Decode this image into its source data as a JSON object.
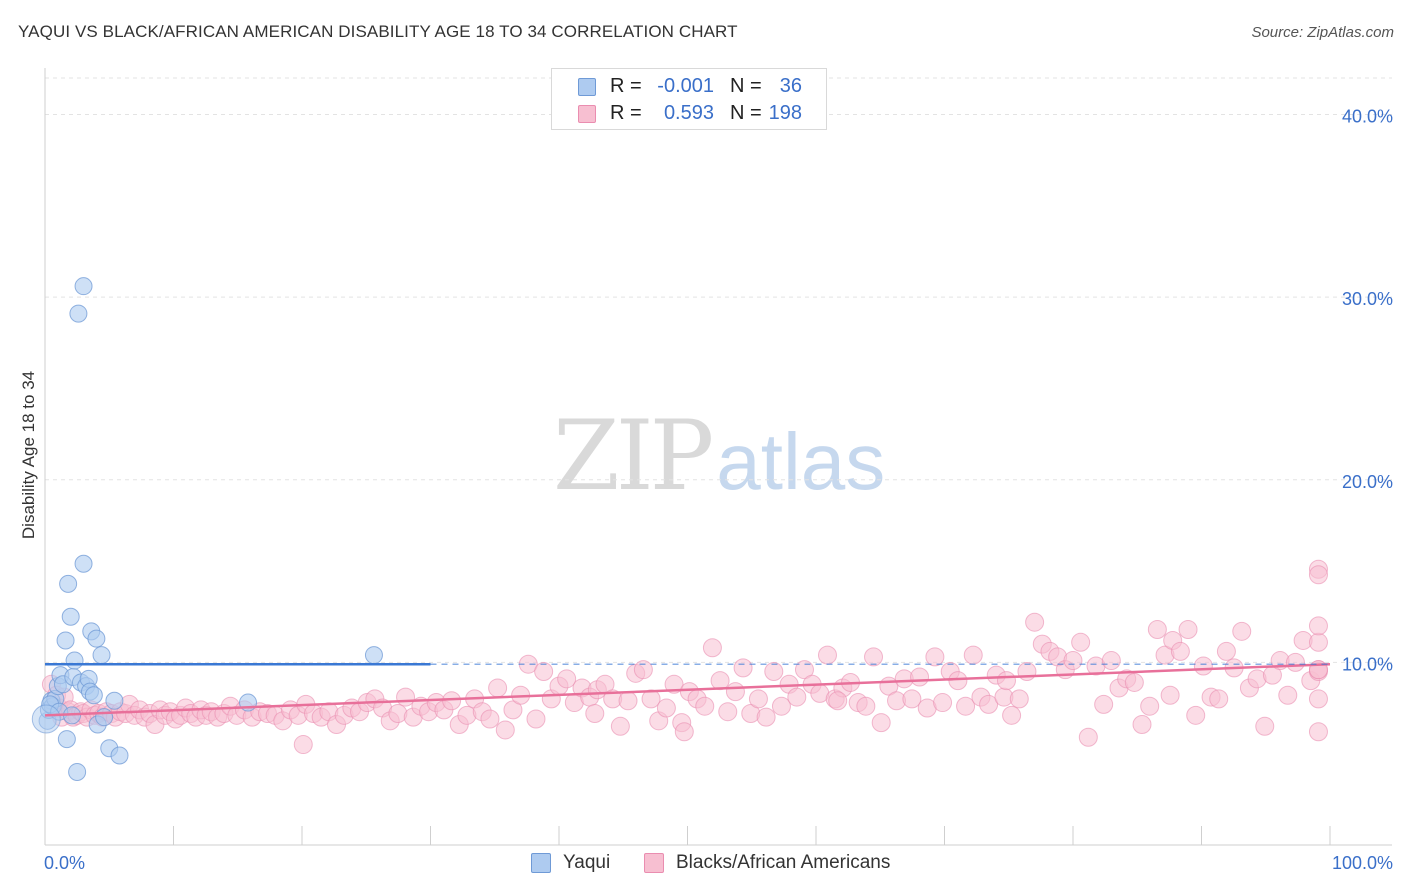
{
  "header": {
    "title": "YAQUI VS BLACK/AFRICAN AMERICAN DISABILITY AGE 18 TO 34 CORRELATION CHART",
    "source": "Source: ZipAtlas.com"
  },
  "watermark": {
    "zip": "ZIP",
    "atlas": "atlas"
  },
  "legend": {
    "rows": [
      {
        "r_label": "R =",
        "r_value": "-0.001",
        "n_label": "N =",
        "n_value": "36",
        "color": "#aecbf0",
        "border": "#6f9ad6"
      },
      {
        "r_label": "R =",
        "r_value": "0.593",
        "n_label": "N =",
        "n_value": "198",
        "color": "#f7bfd1",
        "border": "#ea8db0"
      }
    ]
  },
  "bottom_legend": [
    {
      "label": "Yaqui",
      "color": "#aecbf0",
      "border": "#6f9ad6"
    },
    {
      "label": "Blacks/African Americans",
      "color": "#f7bfd1",
      "border": "#ea8db0"
    }
  ],
  "chart_data": {
    "type": "scatter",
    "title": "YAQUI VS BLACK/AFRICAN AMERICAN DISABILITY AGE 18 TO 34 CORRELATION CHART",
    "xlabel": "",
    "ylabel": "Disability Age 18 to 34",
    "xlim": [
      0,
      100
    ],
    "ylim": [
      0,
      42
    ],
    "x_tick_labels": [
      "0.0%",
      "100.0%"
    ],
    "y_ticks": [
      10,
      20,
      30,
      40
    ],
    "y_tick_labels": [
      "10.0%",
      "20.0%",
      "30.0%",
      "40.0%"
    ],
    "grid": true,
    "colors": {
      "yaqui": "#6f9ad6",
      "yaqui_fill": "#aecbf0",
      "black": "#ea8db0",
      "black_fill": "#f7bfd1",
      "yaqui_line": "#3a78d4",
      "black_line": "#e8709a",
      "axis_text": "#3a6fc9"
    },
    "series": [
      {
        "name": "Yaqui",
        "trend": {
          "x": [
            0,
            30
          ],
          "y": [
            9.9,
            9.9
          ],
          "dashed_extension_to": 100
        },
        "points": [
          [
            0.2,
            6.8
          ],
          [
            0.3,
            7.4
          ],
          [
            0.5,
            7.9
          ],
          [
            0.6,
            7.6
          ],
          [
            0.8,
            8.0
          ],
          [
            1.0,
            8.7
          ],
          [
            1.2,
            9.3
          ],
          [
            1.4,
            8.8
          ],
          [
            1.6,
            11.2
          ],
          [
            1.7,
            5.8
          ],
          [
            1.8,
            14.3
          ],
          [
            2.0,
            12.5
          ],
          [
            2.2,
            9.2
          ],
          [
            2.3,
            10.1
          ],
          [
            2.5,
            4.0
          ],
          [
            2.6,
            29.1
          ],
          [
            2.8,
            8.9
          ],
          [
            3.0,
            30.6
          ],
          [
            3.0,
            15.4
          ],
          [
            3.2,
            8.7
          ],
          [
            3.4,
            9.1
          ],
          [
            3.5,
            8.4
          ],
          [
            3.6,
            11.7
          ],
          [
            3.8,
            8.2
          ],
          [
            4.0,
            11.3
          ],
          [
            4.1,
            6.6
          ],
          [
            4.4,
            10.4
          ],
          [
            5.0,
            5.3
          ],
          [
            5.4,
            7.9
          ],
          [
            5.8,
            4.9
          ],
          [
            0.4,
            7.7
          ],
          [
            1.1,
            7.3
          ],
          [
            2.1,
            7.1
          ],
          [
            15.8,
            7.8
          ],
          [
            25.6,
            10.4
          ],
          [
            4.6,
            7.0
          ]
        ]
      },
      {
        "name": "Blacks/African Americans",
        "trend": {
          "x": [
            0,
            100
          ],
          "y": [
            7.1,
            9.9
          ]
        },
        "points": [
          [
            0.5,
            8.8
          ],
          [
            0.7,
            7.6
          ],
          [
            0.9,
            8.2
          ],
          [
            1.1,
            7.5
          ],
          [
            1.3,
            7.0
          ],
          [
            1.5,
            8.1
          ],
          [
            1.8,
            7.3
          ],
          [
            2.0,
            7.4
          ],
          [
            2.2,
            7.0
          ],
          [
            2.5,
            7.1
          ],
          [
            2.8,
            7.3
          ],
          [
            3.0,
            7.2
          ],
          [
            3.3,
            7.0
          ],
          [
            3.6,
            7.4
          ],
          [
            3.9,
            7.1
          ],
          [
            4.2,
            7.2
          ],
          [
            4.5,
            7.0
          ],
          [
            4.8,
            7.3
          ],
          [
            5.2,
            7.2
          ],
          [
            5.5,
            7.0
          ],
          [
            5.9,
            7.3
          ],
          [
            6.3,
            7.2
          ],
          [
            6.6,
            7.7
          ],
          [
            7.0,
            7.1
          ],
          [
            7.4,
            7.4
          ],
          [
            7.8,
            7.0
          ],
          [
            8.2,
            7.2
          ],
          [
            8.6,
            6.6
          ],
          [
            9.0,
            7.4
          ],
          [
            9.4,
            7.1
          ],
          [
            9.8,
            7.3
          ],
          [
            10.2,
            6.9
          ],
          [
            10.6,
            7.1
          ],
          [
            11.0,
            7.5
          ],
          [
            11.4,
            7.2
          ],
          [
            11.8,
            7.0
          ],
          [
            12.2,
            7.4
          ],
          [
            12.6,
            7.1
          ],
          [
            13.0,
            7.3
          ],
          [
            13.5,
            7.0
          ],
          [
            14.0,
            7.2
          ],
          [
            14.5,
            7.6
          ],
          [
            15.0,
            7.1
          ],
          [
            15.6,
            7.4
          ],
          [
            16.2,
            7.0
          ],
          [
            16.8,
            7.3
          ],
          [
            17.4,
            7.2
          ],
          [
            18.0,
            7.1
          ],
          [
            18.6,
            6.8
          ],
          [
            19.2,
            7.4
          ],
          [
            19.8,
            7.1
          ],
          [
            20.4,
            7.7
          ],
          [
            21.0,
            7.2
          ],
          [
            21.6,
            7.0
          ],
          [
            22.2,
            7.3
          ],
          [
            22.8,
            6.6
          ],
          [
            23.4,
            7.1
          ],
          [
            24.0,
            7.5
          ],
          [
            24.6,
            7.3
          ],
          [
            25.2,
            7.8
          ],
          [
            25.8,
            8.0
          ],
          [
            26.4,
            7.5
          ],
          [
            27.0,
            6.8
          ],
          [
            27.6,
            7.2
          ],
          [
            28.2,
            8.1
          ],
          [
            28.8,
            7.0
          ],
          [
            29.4,
            7.6
          ],
          [
            30.0,
            7.3
          ],
          [
            30.6,
            7.8
          ],
          [
            31.2,
            7.4
          ],
          [
            31.8,
            7.9
          ],
          [
            32.4,
            6.6
          ],
          [
            33.0,
            7.1
          ],
          [
            33.6,
            8.0
          ],
          [
            34.2,
            7.3
          ],
          [
            34.8,
            6.9
          ],
          [
            35.4,
            8.6
          ],
          [
            36.0,
            6.3
          ],
          [
            36.6,
            7.4
          ],
          [
            37.2,
            8.2
          ],
          [
            37.8,
            9.9
          ],
          [
            38.4,
            6.9
          ],
          [
            39.0,
            9.5
          ],
          [
            39.6,
            8.0
          ],
          [
            40.2,
            8.7
          ],
          [
            40.8,
            9.1
          ],
          [
            41.4,
            7.8
          ],
          [
            42.0,
            8.6
          ],
          [
            42.6,
            8.1
          ],
          [
            43.2,
            8.5
          ],
          [
            43.8,
            8.8
          ],
          [
            44.4,
            8.0
          ],
          [
            45.0,
            6.5
          ],
          [
            45.6,
            7.9
          ],
          [
            46.2,
            9.4
          ],
          [
            46.8,
            9.6
          ],
          [
            47.4,
            8.0
          ],
          [
            48.0,
            6.8
          ],
          [
            48.6,
            7.5
          ],
          [
            49.2,
            8.8
          ],
          [
            49.8,
            6.7
          ],
          [
            50.4,
            8.4
          ],
          [
            51.0,
            8.0
          ],
          [
            51.6,
            7.6
          ],
          [
            52.2,
            10.8
          ],
          [
            52.8,
            9.0
          ],
          [
            53.4,
            7.3
          ],
          [
            54.0,
            8.4
          ],
          [
            54.6,
            9.7
          ],
          [
            55.2,
            7.2
          ],
          [
            55.8,
            8.0
          ],
          [
            56.4,
            7.0
          ],
          [
            57.0,
            9.5
          ],
          [
            57.6,
            7.6
          ],
          [
            58.2,
            8.8
          ],
          [
            58.8,
            8.1
          ],
          [
            59.4,
            9.6
          ],
          [
            60.0,
            8.8
          ],
          [
            60.6,
            8.3
          ],
          [
            61.2,
            10.4
          ],
          [
            61.8,
            8.0
          ],
          [
            62.4,
            8.6
          ],
          [
            63.0,
            8.9
          ],
          [
            63.6,
            7.8
          ],
          [
            64.2,
            7.6
          ],
          [
            64.8,
            10.3
          ],
          [
            65.4,
            6.7
          ],
          [
            66.0,
            8.7
          ],
          [
            66.6,
            7.9
          ],
          [
            67.2,
            9.1
          ],
          [
            67.8,
            8.0
          ],
          [
            68.4,
            9.2
          ],
          [
            69.0,
            7.5
          ],
          [
            69.6,
            10.3
          ],
          [
            70.2,
            7.8
          ],
          [
            70.8,
            9.5
          ],
          [
            71.4,
            9.0
          ],
          [
            72.0,
            7.6
          ],
          [
            72.6,
            10.4
          ],
          [
            73.2,
            8.1
          ],
          [
            73.8,
            7.7
          ],
          [
            74.4,
            9.3
          ],
          [
            75.0,
            8.1
          ],
          [
            75.6,
            7.1
          ],
          [
            76.2,
            8.0
          ],
          [
            76.8,
            9.5
          ],
          [
            77.4,
            12.2
          ],
          [
            78.0,
            11.0
          ],
          [
            78.6,
            10.6
          ],
          [
            79.2,
            10.3
          ],
          [
            79.8,
            9.6
          ],
          [
            80.4,
            10.1
          ],
          [
            81.0,
            11.1
          ],
          [
            81.6,
            5.9
          ],
          [
            82.2,
            9.8
          ],
          [
            82.8,
            7.7
          ],
          [
            83.4,
            10.1
          ],
          [
            84.0,
            8.6
          ],
          [
            84.6,
            9.1
          ],
          [
            85.2,
            8.9
          ],
          [
            85.8,
            6.6
          ],
          [
            86.4,
            7.6
          ],
          [
            87.0,
            11.8
          ],
          [
            87.6,
            10.4
          ],
          [
            88.2,
            11.2
          ],
          [
            88.8,
            10.6
          ],
          [
            89.4,
            11.8
          ],
          [
            90.0,
            7.1
          ],
          [
            90.6,
            9.8
          ],
          [
            91.2,
            8.1
          ],
          [
            91.8,
            8.0
          ],
          [
            92.4,
            10.6
          ],
          [
            93.0,
            9.7
          ],
          [
            93.6,
            11.7
          ],
          [
            94.2,
            8.6
          ],
          [
            94.8,
            9.1
          ],
          [
            95.4,
            6.5
          ],
          [
            96.0,
            9.3
          ],
          [
            96.6,
            10.1
          ],
          [
            97.2,
            8.2
          ],
          [
            97.8,
            10.0
          ],
          [
            98.4,
            11.2
          ],
          [
            99.0,
            9.0
          ],
          [
            99.6,
            9.5
          ],
          [
            100.2,
            11.1
          ],
          [
            100.8,
            9.6
          ],
          [
            101.4,
            15.1
          ],
          [
            101.7,
            14.8
          ],
          [
            102.2,
            9.6
          ],
          [
            102.6,
            12.0
          ],
          [
            102.9,
            6.2
          ],
          [
            103.3,
            8.0
          ],
          [
            88.0,
            8.2
          ],
          [
            20.2,
            5.5
          ],
          [
            50.0,
            6.2
          ],
          [
            75.2,
            9.0
          ],
          [
            62.0,
            7.9
          ],
          [
            43.0,
            7.2
          ]
        ]
      }
    ]
  }
}
